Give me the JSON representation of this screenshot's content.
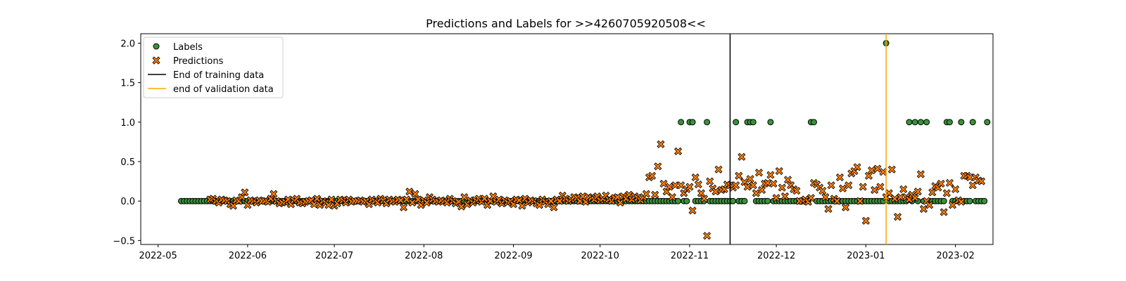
{
  "chart_data": {
    "type": "scatter",
    "title": "Predictions and Labels for >>4260705920508<<",
    "xlabel": "",
    "ylabel": "",
    "xlim": [
      "2022-04-25",
      "2023-02-14"
    ],
    "ylim": [
      -0.55,
      2.12
    ],
    "x_ticks": [
      "2022-05",
      "2022-06",
      "2022-07",
      "2022-08",
      "2022-09",
      "2022-10",
      "2022-11",
      "2022-12",
      "2023-01",
      "2023-02"
    ],
    "y_ticks": [
      "−0.5",
      "0.0",
      "0.5",
      "1.0",
      "1.5",
      "2.0"
    ],
    "y_tick_values": [
      -0.5,
      0.0,
      0.5,
      1.0,
      1.5,
      2.0
    ],
    "grid": false,
    "legend_position": "top-left",
    "legend": [
      {
        "label": "Labels",
        "kind": "circle",
        "color": "#3a923a"
      },
      {
        "label": "Predictions",
        "kind": "x",
        "color": "#ff7f0e"
      },
      {
        "label": "End of training data",
        "kind": "line",
        "color": "#000000"
      },
      {
        "label": "end of validation data",
        "kind": "line",
        "color": "#ffa500"
      }
    ],
    "vlines": [
      {
        "x": "2022-11-15",
        "label": "End of training data",
        "color": "#000000"
      },
      {
        "x": "2023-01-08",
        "label": "end of validation data",
        "color": "#ffa500"
      }
    ],
    "series": [
      {
        "name": "Labels",
        "marker": "circle",
        "color": "#3a923a",
        "start": "2022-05-09",
        "values": [
          0,
          0,
          0,
          0,
          0,
          0,
          0,
          0,
          0,
          0,
          0,
          0,
          0,
          0,
          0,
          0,
          0,
          0,
          0,
          0,
          0,
          0,
          0,
          0,
          0,
          0,
          0,
          0,
          0,
          0,
          0,
          0,
          0,
          0,
          0,
          0,
          0,
          0,
          0,
          0,
          0,
          0,
          0,
          0,
          0,
          0,
          0,
          0,
          0,
          0,
          0,
          0,
          0,
          0,
          0,
          0,
          0,
          0,
          0,
          0,
          0,
          0,
          0,
          0,
          0,
          0,
          0,
          0,
          0,
          0,
          0,
          0,
          0,
          0,
          0,
          0,
          0,
          0,
          0,
          0,
          0,
          0,
          0,
          0,
          0,
          0,
          0,
          0,
          0,
          0,
          0,
          0,
          0,
          0,
          0,
          0,
          0,
          0,
          0,
          0,
          0,
          0,
          0,
          0,
          0,
          0,
          0,
          0,
          0,
          0,
          0,
          0,
          0,
          0,
          0,
          0,
          0,
          0,
          0,
          0,
          0,
          0,
          0,
          0,
          0,
          0,
          0,
          0,
          0,
          0,
          0,
          0,
          0,
          0,
          0,
          0,
          0,
          0,
          0,
          0,
          0,
          0,
          0,
          0,
          0,
          0,
          0,
          0,
          0,
          0,
          0,
          0,
          0,
          0,
          0,
          0,
          0,
          0,
          0,
          0,
          0,
          0,
          0,
          0,
          0,
          0,
          0,
          0,
          0,
          0,
          0,
          0,
          0,
          1,
          0,
          0,
          1,
          1,
          0,
          0,
          0,
          0,
          1,
          0,
          0,
          0,
          0,
          0,
          0,
          0,
          0,
          0,
          1,
          0,
          0,
          0,
          1,
          1,
          1,
          0,
          0,
          0,
          0,
          0,
          1,
          0,
          0,
          0,
          0,
          0,
          0,
          0,
          0,
          0,
          0,
          0,
          0,
          0,
          1,
          1,
          0,
          0,
          0,
          0,
          0,
          0,
          0,
          0,
          0,
          0,
          0,
          0,
          0,
          0,
          0,
          0,
          0,
          0,
          0,
          0,
          0,
          0,
          0,
          0,
          2,
          0,
          0,
          0,
          0,
          0,
          0,
          0,
          1,
          0,
          1,
          0,
          1,
          0,
          1,
          0,
          0,
          0,
          0,
          0,
          0,
          1,
          1,
          0,
          0,
          0,
          1,
          0,
          0,
          0,
          1,
          0,
          0,
          0,
          0,
          1
        ]
      },
      {
        "name": "Predictions",
        "marker": "x",
        "color": "#ff7f0e",
        "start": "2022-05-19",
        "values": [
          0.02,
          0.03,
          0.0,
          -0.02,
          0.02,
          0.01,
          0.0,
          -0.04,
          -0.06,
          0.01,
          0.0,
          0.05,
          0.11,
          -0.05,
          0.01,
          0.0,
          -0.02,
          0.01,
          0.0,
          0.0,
          -0.01,
          0.03,
          0.09,
          0.0,
          -0.03,
          -0.02,
          -0.01,
          0.02,
          -0.04,
          0.01,
          0.03,
          -0.02,
          -0.03,
          -0.01,
          0.0,
          0.01,
          -0.04,
          0.03,
          -0.05,
          0.0,
          -0.02,
          -0.05,
          0.02,
          -0.06,
          -0.03,
          0.02,
          0.01,
          -0.02,
          0.02,
          -0.01,
          0.0,
          0.0,
          0.01,
          -0.01,
          0.0,
          -0.04,
          0.02,
          0.0,
          -0.02,
          0.03,
          0.01,
          -0.03,
          0.02,
          0.0,
          -0.01,
          0.02,
          0.01,
          -0.08,
          0.02,
          0.12,
          -0.02,
          0.09,
          0.02,
          -0.05,
          0.01,
          -0.02,
          0.05,
          0.02,
          0.0,
          -0.01,
          0.01,
          0.0,
          -0.02,
          0.03,
          0.0,
          -0.03,
          -0.01,
          -0.07,
          0.05,
          -0.04,
          0.01,
          -0.02,
          0.01,
          0.03,
          -0.01,
          0.03,
          -0.05,
          0.0,
          0.06,
          -0.01,
          0.02,
          -0.03,
          0.01,
          -0.02,
          0.0,
          -0.04,
          0.02,
          0.01,
          -0.06,
          0.03,
          -0.02,
          0.01,
          0.0,
          -0.03,
          -0.05,
          0.02,
          -0.01,
          -0.04,
          0.0,
          -0.08,
          0.02,
          0.0,
          0.07,
          0.03,
          0.0,
          0.02,
          0.05,
          0.04,
          0.0,
          0.06,
          -0.01,
          0.05,
          0.04,
          0.02,
          0.06,
          0.01,
          0.03,
          0.07,
          0.02,
          0.0,
          0.04,
          0.05,
          -0.02,
          0.06,
          0.03,
          0.08,
          0.02,
          0.06,
          0.04,
          0.01,
          0.05,
          0.09,
          0.3,
          0.32,
          0.08,
          0.44,
          0.72,
          0.22,
          0.12,
          0.18,
          0.05,
          0.2,
          0.63,
          0.2,
          0.1,
          0.15,
          0.18,
          -0.12,
          0.3,
          0.21,
          0.1,
          0.03,
          -0.44,
          0.25,
          0.16,
          0.12,
          0.4,
          0.14,
          0.15,
          0.21,
          0.2,
          0.17,
          0.2,
          0.32,
          0.56,
          0.24,
          0.18,
          0.28,
          0.2,
          0.1,
          0.36,
          0.14,
          0.22,
          0.23,
          0.33,
          0.22,
          0.04,
          0.38,
          0.17,
          0.06,
          0.27,
          0.2,
          0.15,
          0.13,
          0.0,
          0.0,
          0.02,
          -0.01,
          0.04,
          0.23,
          0.21,
          0.17,
          0.13,
          0.05,
          -0.1,
          0.2,
          0.03,
          0.0,
          0.3,
          0.16,
          -0.08,
          0.2,
          0.35,
          0.38,
          0.43,
          0.0,
          0.18,
          -0.25,
          0.32,
          0.39,
          0.14,
          0.41,
          0.18,
          0.37,
          0.05,
          0.1,
          0.4,
          0.03,
          -0.2,
          0.05,
          0.15,
          0.05,
          0.02,
          0.08,
          0.04,
          0.12,
          0.34,
          -0.1,
          0.0,
          -0.05,
          0.11,
          0.19,
          0.17,
          0.22,
          -0.14,
          0.1,
          0.23,
          -0.05,
          0.15,
          0.01,
          -0.01,
          0.32,
          0.32,
          0.3,
          0.2,
          0.3,
          0.26,
          0.25
        ]
      }
    ]
  }
}
